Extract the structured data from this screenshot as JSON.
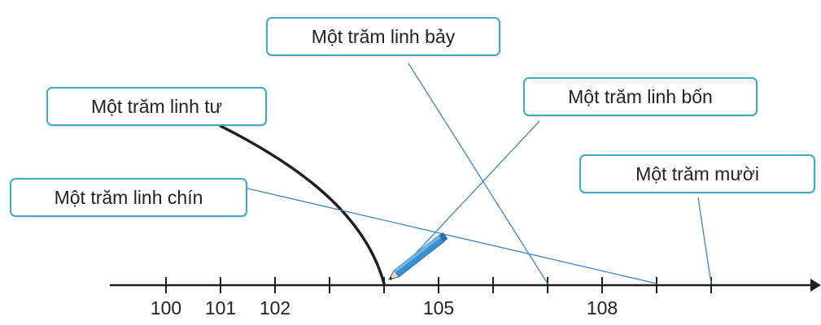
{
  "labels": {
    "bay": "Một trăm linh bảy",
    "tu": "Một trăm linh tư",
    "bon": "Một trăm linh bốn",
    "muoi": "Một trăm mười",
    "chin": "Một trăm linh chín"
  },
  "number_line": {
    "tick_labels": [
      "100",
      "101",
      "102",
      "105",
      "108"
    ]
  },
  "colors": {
    "box_border": "#3ea9cf",
    "line": "#1f1f1f",
    "connector": "#3a87c8",
    "pencil": "#3a8fd0"
  },
  "icon": "pencil-icon"
}
